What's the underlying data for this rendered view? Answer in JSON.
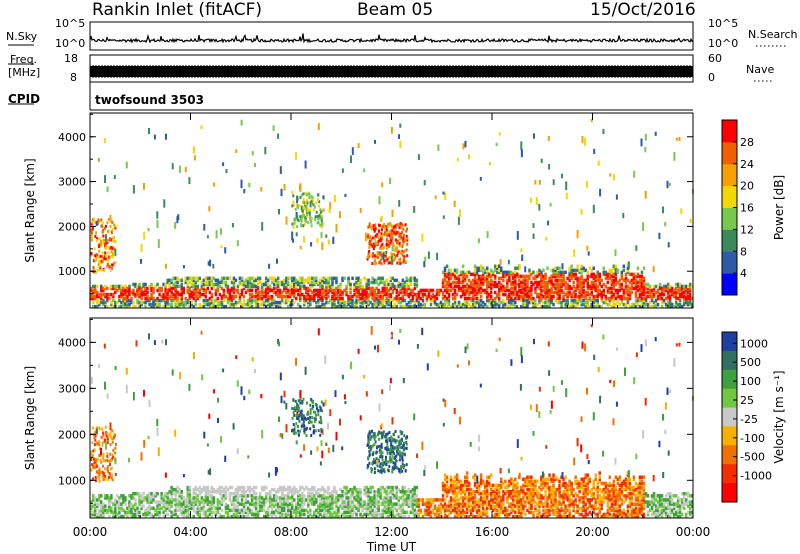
{
  "header": {
    "station": "Rankin Inlet (fitACF)",
    "beam": "Beam 05",
    "date": "15/Oct/2016"
  },
  "strips": {
    "nsky_label": "N.Sky",
    "nsky_ticks": [
      "10^5",
      "10^0"
    ],
    "nsearch_label": "N.Search",
    "nsearch_ticks": [
      "10^5",
      "10^0"
    ],
    "freq_label": "Freq.",
    "freq_unit": "[MHz]",
    "freq_ticks": [
      "18",
      "8"
    ],
    "nave_label": "Nave",
    "nave_ticks": [
      "60",
      "0"
    ],
    "cpid_label": "CPID",
    "cpid_value": "twofsound 3503"
  },
  "chart_data": [
    {
      "type": "heatmap",
      "parameter": "Power",
      "ylabel": "Slant Range [km]",
      "xlabel": "Time UT",
      "x_ticks": [
        "00:00",
        "04:00",
        "08:00",
        "12:00",
        "16:00",
        "20:00",
        "00:00"
      ],
      "x_range_hours": [
        0,
        24
      ],
      "y_ticks": [
        "1000",
        "2000",
        "3000",
        "4000"
      ],
      "y_range_km": [
        180,
        4530
      ],
      "colorbar": {
        "label": "Power [dB]",
        "ticks": [
          "4",
          "8",
          "12",
          "16",
          "20",
          "24",
          "28"
        ],
        "range": [
          0,
          30
        ],
        "colors": [
          "#0000ff",
          "#2e5aa8",
          "#3c8a5a",
          "#78c850",
          "#f0d800",
          "#f5a000",
          "#f06000",
          "#ff0000"
        ]
      }
    },
    {
      "type": "heatmap",
      "parameter": "Velocity",
      "ylabel": "Slant Range [km]",
      "xlabel": "Time UT",
      "x_ticks": [
        "00:00",
        "04:00",
        "08:00",
        "12:00",
        "16:00",
        "20:00",
        "00:00"
      ],
      "x_range_hours": [
        0,
        24
      ],
      "y_ticks": [
        "1000",
        "2000",
        "3000",
        "4000"
      ],
      "y_range_km": [
        180,
        4530
      ],
      "colorbar": {
        "label": "Velocity [m s⁻¹]",
        "ticks": [
          "1000",
          "500",
          "100",
          "25",
          "-25",
          "-100",
          "-500",
          "-1000"
        ],
        "colors": [
          "#2040a0",
          "#307060",
          "#40a040",
          "#70c840",
          "#c8c8c8",
          "#f5b000",
          "#f07000",
          "#f03000",
          "#ff0000"
        ]
      }
    }
  ],
  "colors": {
    "background": "#ffffff",
    "axes": "#000000"
  }
}
